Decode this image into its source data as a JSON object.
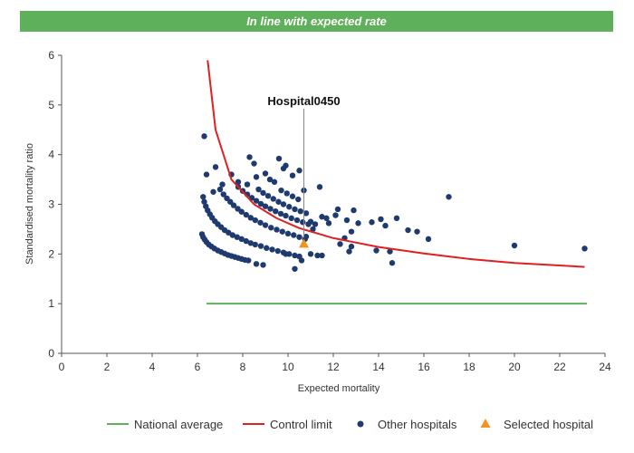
{
  "banner": {
    "text": "In line with expected rate",
    "color": "#5fb05a"
  },
  "chart_data": {
    "type": "scatter",
    "xlabel": "Expected mortality",
    "ylabel": "Standardised mortality ratio",
    "xlim": [
      0,
      24
    ],
    "ylim": [
      0,
      6
    ],
    "xticks": [
      0,
      2,
      4,
      6,
      8,
      10,
      12,
      14,
      16,
      18,
      20,
      22,
      24
    ],
    "yticks": [
      0,
      1,
      2,
      3,
      4,
      5,
      6
    ],
    "grid": false,
    "legend_position": "bottom",
    "annotation": {
      "text": "Hospital0450",
      "x": 10.7,
      "y": 2.2
    },
    "series": [
      {
        "name": "National average",
        "kind": "line",
        "color": "#5fb05a",
        "x": [
          6.4,
          23.2
        ],
        "y": [
          1.0,
          1.0
        ]
      },
      {
        "name": "Control limit",
        "kind": "line",
        "color": "#e02020",
        "x": [
          6.45,
          6.8,
          7.5,
          8.5,
          9.5,
          10.5,
          12,
          14,
          16,
          18,
          20,
          23.1
        ],
        "y": [
          5.9,
          4.5,
          3.5,
          3.0,
          2.72,
          2.52,
          2.32,
          2.14,
          2.01,
          1.9,
          1.82,
          1.74
        ]
      },
      {
        "name": "Other hospitals",
        "kind": "points",
        "color": "#1f3a6e",
        "points": [
          [
            6.3,
            4.37
          ],
          [
            6.4,
            3.6
          ],
          [
            6.8,
            3.75
          ],
          [
            6.7,
            3.25
          ],
          [
            7.1,
            3.4
          ],
          [
            7.5,
            3.6
          ],
          [
            7.8,
            3.45
          ],
          [
            8.2,
            3.4
          ],
          [
            8.3,
            3.95
          ],
          [
            8.5,
            3.82
          ],
          [
            8.6,
            3.55
          ],
          [
            9.0,
            3.62
          ],
          [
            9.2,
            3.5
          ],
          [
            9.4,
            3.45
          ],
          [
            9.6,
            3.92
          ],
          [
            9.8,
            3.72
          ],
          [
            9.9,
            3.78
          ],
          [
            10.2,
            3.58
          ],
          [
            10.5,
            3.68
          ],
          [
            10.7,
            3.28
          ],
          [
            11.0,
            2.65
          ],
          [
            11.1,
            2.5
          ],
          [
            11.2,
            2.6
          ],
          [
            11.4,
            3.35
          ],
          [
            11.5,
            2.75
          ],
          [
            11.7,
            2.72
          ],
          [
            11.8,
            2.62
          ],
          [
            12.1,
            2.78
          ],
          [
            12.2,
            2.9
          ],
          [
            12.3,
            2.2
          ],
          [
            12.5,
            2.32
          ],
          [
            12.6,
            2.68
          ],
          [
            12.8,
            2.45
          ],
          [
            12.9,
            2.88
          ],
          [
            13.1,
            2.62
          ],
          [
            13.7,
            2.64
          ],
          [
            14.1,
            2.7
          ],
          [
            14.3,
            2.57
          ],
          [
            14.5,
            2.05
          ],
          [
            14.6,
            1.82
          ],
          [
            14.8,
            2.72
          ],
          [
            15.3,
            2.48
          ],
          [
            15.7,
            2.45
          ],
          [
            16.2,
            2.3
          ],
          [
            17.1,
            3.15
          ],
          [
            20.0,
            2.17
          ],
          [
            23.1,
            2.11
          ],
          [
            11.0,
            2.0
          ],
          [
            11.3,
            1.97
          ],
          [
            11.5,
            1.97
          ],
          [
            12.8,
            2.15
          ],
          [
            13.9,
            2.07
          ],
          [
            12.7,
            2.05
          ],
          [
            10.8,
            2.35
          ],
          [
            9.9,
            2.0
          ],
          [
            10.3,
            1.7
          ],
          [
            10.6,
            1.87
          ],
          [
            8.9,
            1.78
          ],
          [
            8.6,
            1.8
          ],
          [
            6.2,
            2.4
          ],
          [
            6.25,
            2.34
          ],
          [
            6.32,
            2.29
          ],
          [
            6.4,
            2.24
          ],
          [
            6.5,
            2.19
          ],
          [
            6.62,
            2.15
          ],
          [
            6.75,
            2.11
          ],
          [
            6.9,
            2.07
          ],
          [
            7.05,
            2.04
          ],
          [
            7.2,
            2.01
          ],
          [
            7.35,
            1.98
          ],
          [
            7.5,
            1.96
          ],
          [
            7.65,
            1.94
          ],
          [
            7.8,
            1.92
          ],
          [
            7.95,
            1.9
          ],
          [
            8.1,
            1.88
          ],
          [
            8.25,
            1.87
          ],
          [
            6.25,
            3.15
          ],
          [
            6.3,
            3.05
          ],
          [
            6.37,
            2.96
          ],
          [
            6.45,
            2.88
          ],
          [
            6.55,
            2.8
          ],
          [
            6.65,
            2.73
          ],
          [
            6.77,
            2.66
          ],
          [
            6.9,
            2.6
          ],
          [
            7.05,
            2.54
          ],
          [
            7.2,
            2.48
          ],
          [
            7.37,
            2.43
          ],
          [
            7.55,
            2.38
          ],
          [
            7.75,
            2.34
          ],
          [
            7.95,
            2.3
          ],
          [
            8.15,
            2.26
          ],
          [
            8.35,
            2.22
          ],
          [
            8.55,
            2.19
          ],
          [
            8.8,
            2.16
          ],
          [
            9.05,
            2.12
          ],
          [
            9.3,
            2.09
          ],
          [
            9.55,
            2.06
          ],
          [
            9.8,
            2.03
          ],
          [
            10.05,
            2.0
          ],
          [
            10.3,
            1.97
          ],
          [
            10.5,
            1.95
          ],
          [
            7.0,
            3.3
          ],
          [
            7.15,
            3.2
          ],
          [
            7.3,
            3.12
          ],
          [
            7.45,
            3.05
          ],
          [
            7.6,
            2.98
          ],
          [
            7.78,
            2.91
          ],
          [
            7.95,
            2.85
          ],
          [
            8.15,
            2.79
          ],
          [
            8.35,
            2.73
          ],
          [
            8.55,
            2.68
          ],
          [
            8.78,
            2.63
          ],
          [
            9.0,
            2.58
          ],
          [
            9.25,
            2.53
          ],
          [
            9.5,
            2.49
          ],
          [
            9.75,
            2.45
          ],
          [
            10.0,
            2.41
          ],
          [
            10.25,
            2.38
          ],
          [
            10.5,
            2.34
          ],
          [
            10.75,
            2.3
          ],
          [
            7.8,
            3.35
          ],
          [
            8.0,
            3.27
          ],
          [
            8.2,
            3.2
          ],
          [
            8.4,
            3.13
          ],
          [
            8.6,
            3.07
          ],
          [
            8.8,
            3.01
          ],
          [
            9.0,
            2.96
          ],
          [
            9.22,
            2.91
          ],
          [
            9.45,
            2.86
          ],
          [
            9.68,
            2.81
          ],
          [
            9.9,
            2.77
          ],
          [
            10.15,
            2.72
          ],
          [
            10.4,
            2.68
          ],
          [
            10.65,
            2.64
          ],
          [
            10.9,
            2.6
          ],
          [
            8.7,
            3.3
          ],
          [
            8.9,
            3.23
          ],
          [
            9.12,
            3.17
          ],
          [
            9.35,
            3.11
          ],
          [
            9.58,
            3.05
          ],
          [
            9.8,
            3.0
          ],
          [
            10.05,
            2.95
          ],
          [
            10.3,
            2.9
          ],
          [
            10.55,
            2.86
          ],
          [
            10.8,
            2.82
          ],
          [
            9.7,
            3.28
          ],
          [
            9.95,
            3.22
          ],
          [
            10.2,
            3.16
          ],
          [
            10.45,
            3.1
          ]
        ]
      },
      {
        "name": "Selected hospital",
        "kind": "marker",
        "color": "#f0941e",
        "points": [
          [
            10.7,
            2.2
          ]
        ]
      }
    ]
  }
}
